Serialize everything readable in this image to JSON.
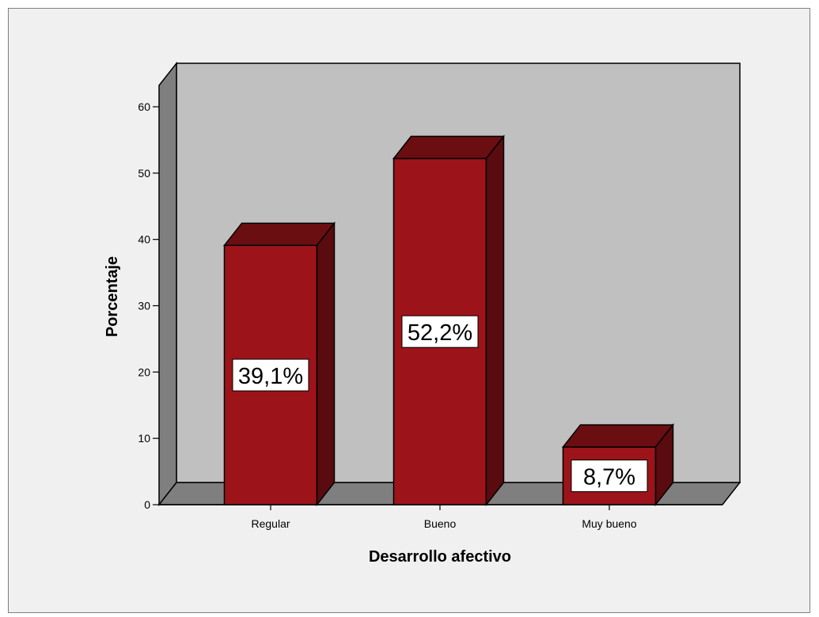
{
  "chart_data": {
    "type": "bar",
    "categories": [
      "Regular",
      "Bueno",
      "Muy bueno"
    ],
    "values": [
      39.1,
      52.2,
      8.7
    ],
    "data_labels": [
      "39,1%",
      "52,2%",
      "8,7%"
    ],
    "xlabel": "Desarrollo afectivo",
    "ylabel": "Porcentaje",
    "ylim": [
      0,
      60
    ],
    "yticks": [
      "0",
      "10",
      "20",
      "30",
      "40",
      "50",
      "60"
    ],
    "grid": false,
    "legend": "none",
    "style": "3d",
    "colors": {
      "background": "#f0f0f0",
      "back_wall": "#c0c0c0",
      "side_wall": "#7f7f7f",
      "floor": "#7f7f7f",
      "bar_front": "#9c1419",
      "bar_top": "#6b0e12",
      "bar_side": "#5a0b0f",
      "label_box": "#ffffff"
    }
  }
}
